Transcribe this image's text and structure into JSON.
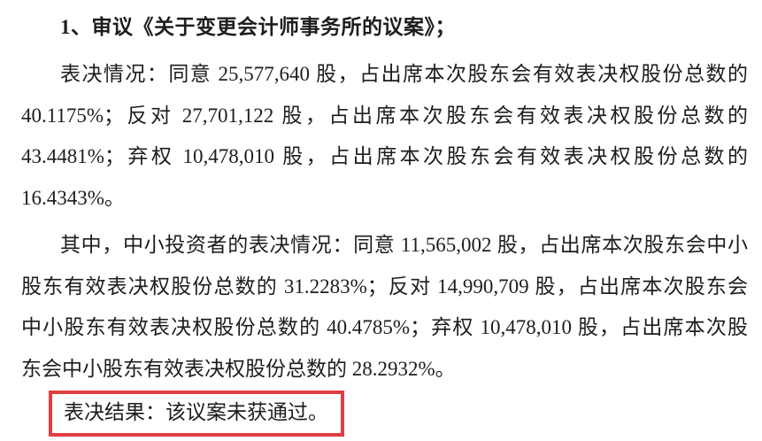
{
  "page": {
    "background": "#ffffff",
    "text_color": "#1d1d1d"
  },
  "document": {
    "item_title": "1、审议《关于变更会计师事务所的议案》；",
    "voting_paragraph": {
      "lines": [
        "表决情况：同意 25,577,640 股，占出席本次股东会有效表决权股份总数的",
        "40.1175%；反对 27,701,122 股，占出席本次股东会有效表决权股份总数的",
        "43.4481%；弃权 10,478,010 股，占出席本次股东会有效表决权股份总数的",
        "16.4343%。"
      ]
    },
    "minority_paragraph": {
      "lines": [
        "其中，中小投资者的表决情况：同意 11,565,002 股，占出席本次股东会中小",
        "股东有效表决权股份总数的 31.2283%；反对 14,990,709 股，占出席本次股东会",
        "中小股东有效表决权股份总数的 40.4785%；弃权 10,478,010 股，占出席本次股",
        "东会中小股东有效表决权股份总数的 28.2932%。"
      ]
    },
    "result": {
      "text": "表决结果：该议案未获通过。",
      "highlight_border_color": "#e23d43"
    }
  },
  "voting_data": {
    "overall": {
      "agree_shares": "25,577,640",
      "agree_pct": "40.1175%",
      "oppose_shares": "27,701,122",
      "oppose_pct": "43.4481%",
      "abstain_shares": "10,478,010",
      "abstain_pct": "16.4343%"
    },
    "minority": {
      "agree_shares": "11,565,002",
      "agree_pct": "31.2283%",
      "oppose_shares": "14,990,709",
      "oppose_pct": "40.4785%",
      "abstain_shares": "10,478,010",
      "abstain_pct": "28.2932%"
    }
  }
}
